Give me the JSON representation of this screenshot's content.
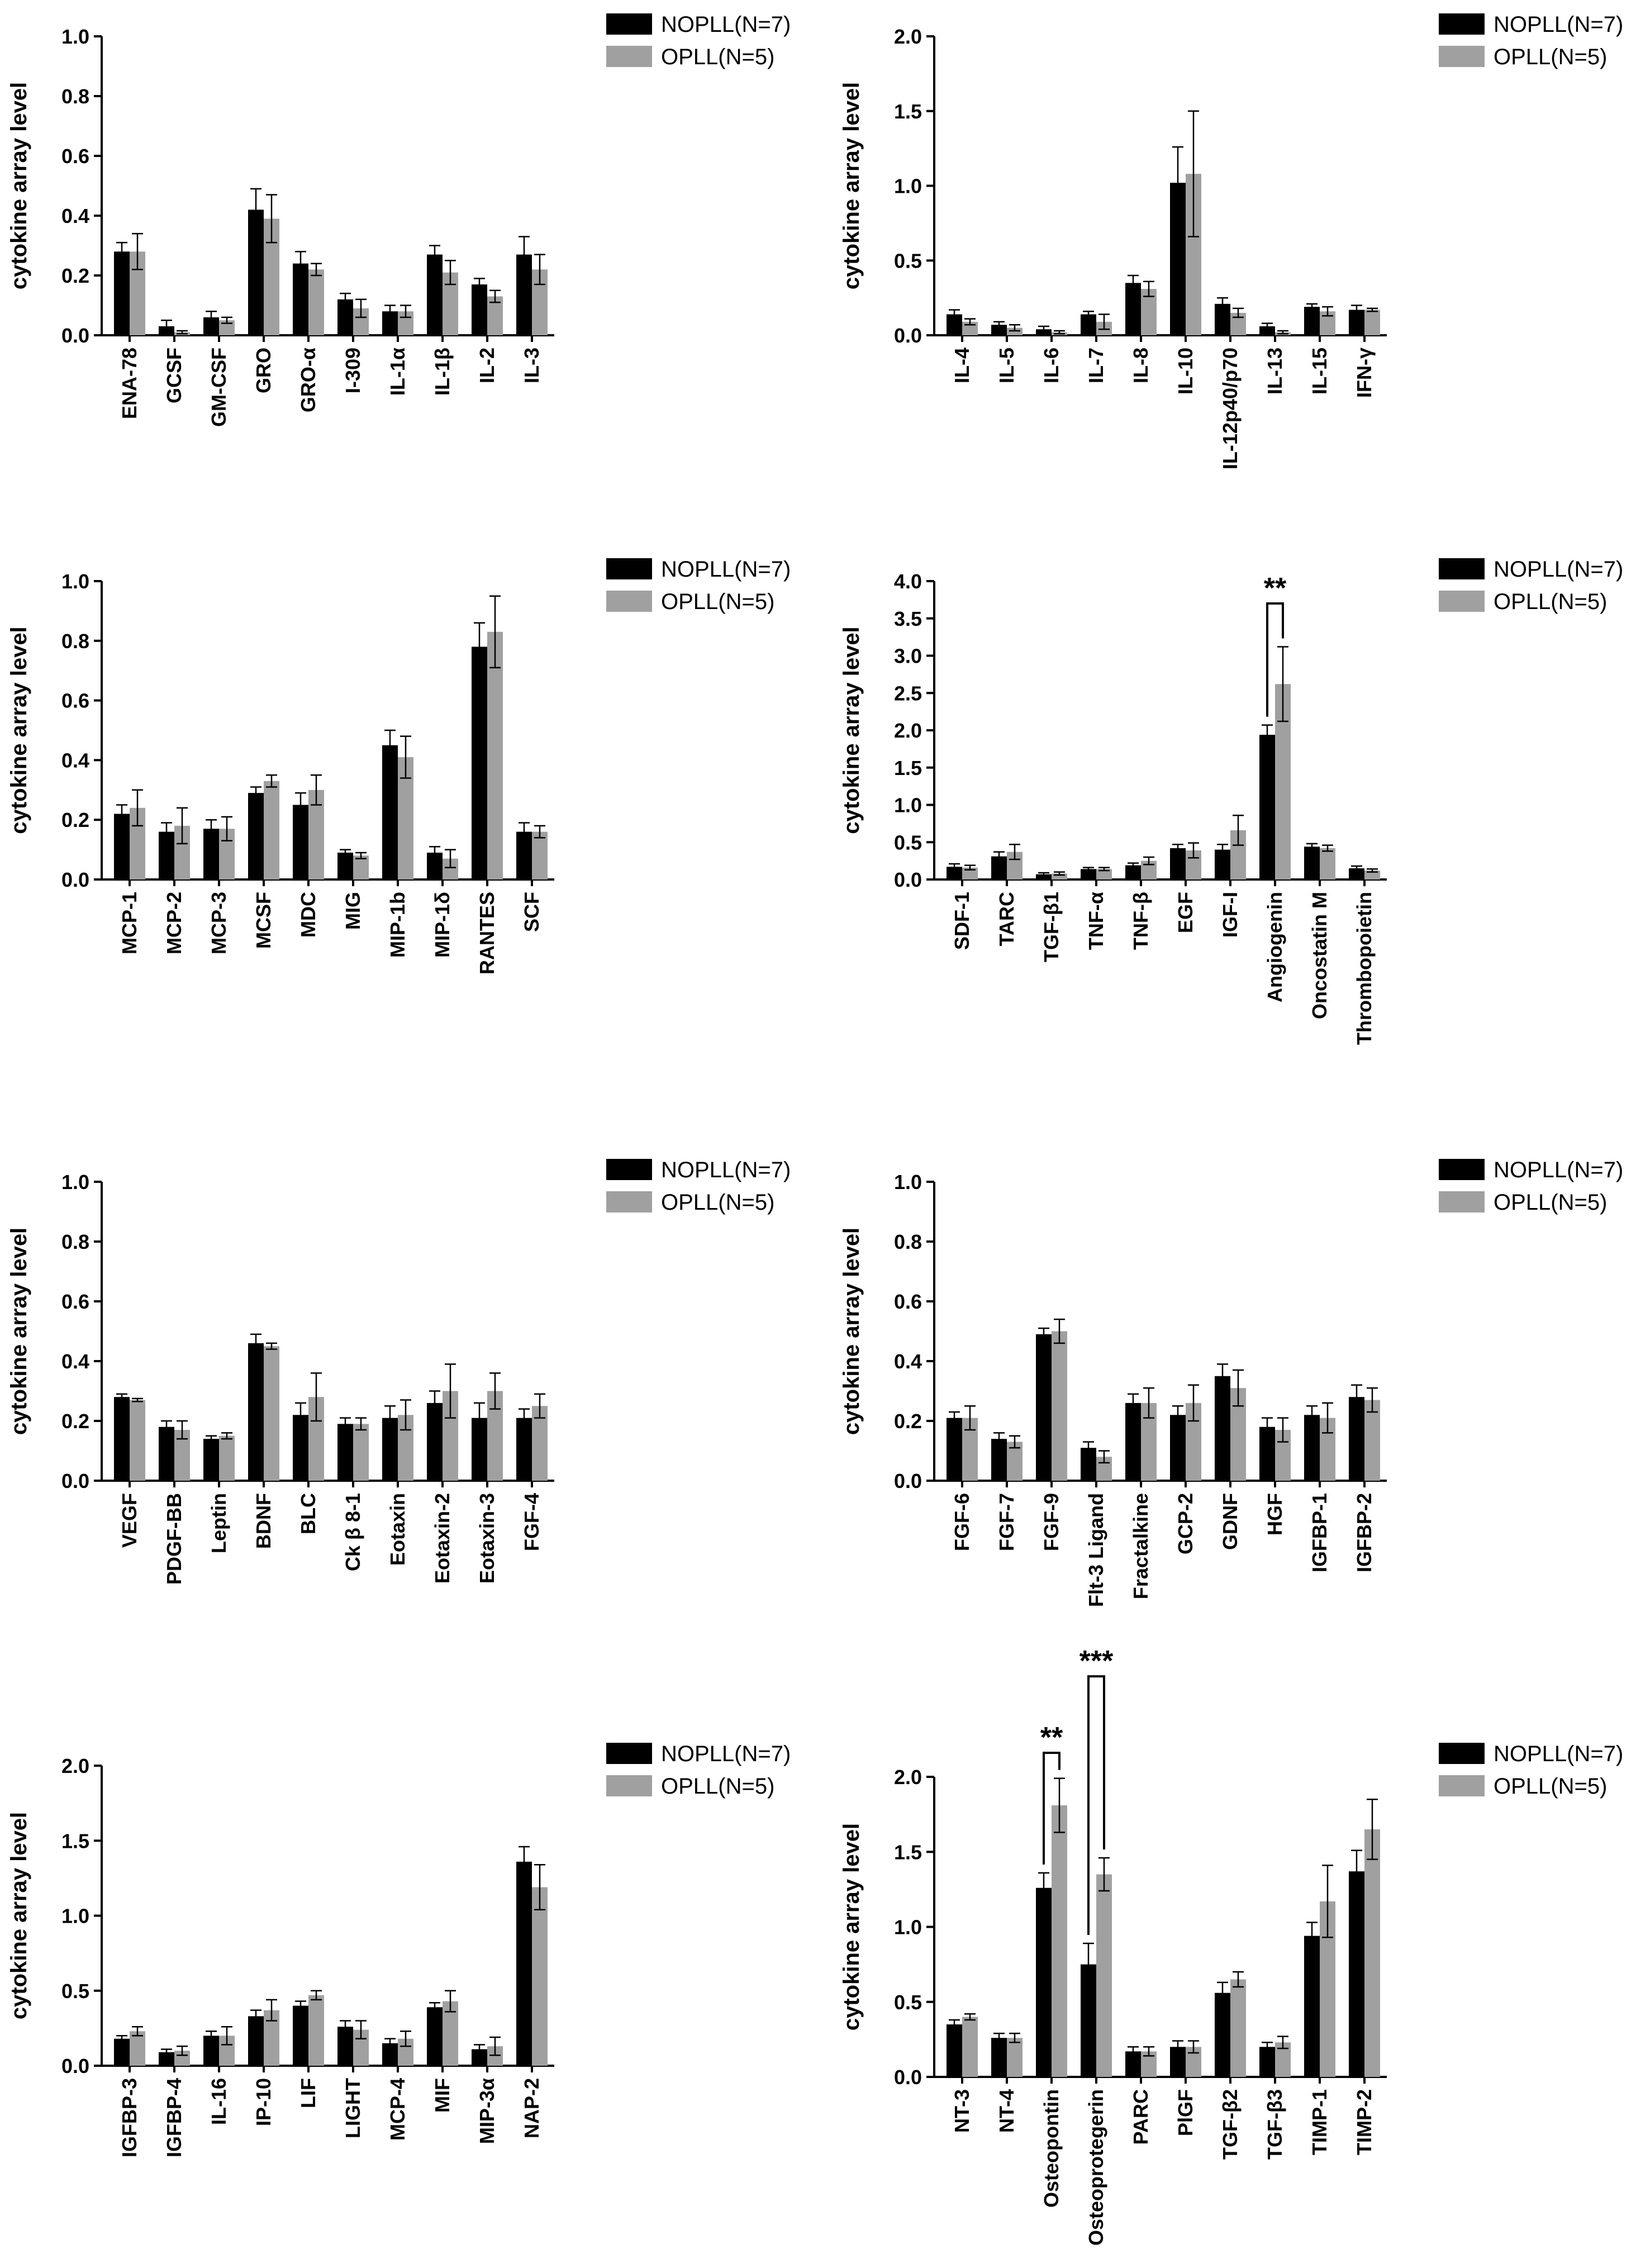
{
  "colors": {
    "nopll": "#000000",
    "opll": "#a0a0a0"
  },
  "chart_data": [
    {
      "type": "bar",
      "ylabel": "cytokine array level",
      "ylim": [
        0,
        1.0
      ],
      "yticks": [
        "0.0",
        "0.2",
        "0.4",
        "0.6",
        "0.8",
        "1.0"
      ],
      "categories": [
        "ENA-78",
        "GCSF",
        "GM-CSF",
        "GRO",
        "GRO-α",
        "I-309",
        "IL-1α",
        "IL-1β",
        "IL-2",
        "IL-3"
      ],
      "series": [
        {
          "name": "NOPLL(N=7)",
          "values": [
            0.28,
            0.03,
            0.06,
            0.42,
            0.24,
            0.12,
            0.08,
            0.27,
            0.17,
            0.27
          ],
          "errors": [
            0.03,
            0.02,
            0.02,
            0.07,
            0.04,
            0.02,
            0.02,
            0.03,
            0.02,
            0.06
          ]
        },
        {
          "name": "OPLL(N=5)",
          "values": [
            0.28,
            0.01,
            0.05,
            0.39,
            0.22,
            0.09,
            0.08,
            0.21,
            0.13,
            0.22
          ],
          "errors": [
            0.06,
            0.005,
            0.01,
            0.08,
            0.02,
            0.03,
            0.02,
            0.04,
            0.02,
            0.05
          ]
        }
      ],
      "annotations": []
    },
    {
      "type": "bar",
      "ylabel": "cytokine array level",
      "ylim": [
        0,
        2.0
      ],
      "yticks": [
        "0.0",
        "0.5",
        "1.0",
        "1.5",
        "2.0"
      ],
      "categories": [
        "IL-4",
        "IL-5",
        "IL-6",
        "IL-7",
        "IL-8",
        "IL-10",
        "IL-12p40/p70",
        "IL-13",
        "IL-15",
        "IFN-γ"
      ],
      "series": [
        {
          "name": "NOPLL(N=7)",
          "values": [
            0.14,
            0.07,
            0.04,
            0.14,
            0.35,
            1.02,
            0.21,
            0.06,
            0.19,
            0.17
          ],
          "errors": [
            0.03,
            0.02,
            0.02,
            0.02,
            0.05,
            0.24,
            0.04,
            0.02,
            0.02,
            0.03
          ]
        },
        {
          "name": "OPLL(N=5)",
          "values": [
            0.09,
            0.05,
            0.02,
            0.09,
            0.31,
            1.08,
            0.15,
            0.02,
            0.16,
            0.17
          ],
          "errors": [
            0.02,
            0.02,
            0.01,
            0.05,
            0.05,
            0.42,
            0.03,
            0.01,
            0.03,
            0.01
          ]
        }
      ],
      "annotations": []
    },
    {
      "type": "bar",
      "ylabel": "cytokine array level",
      "ylim": [
        0,
        1.0
      ],
      "yticks": [
        "0.0",
        "0.2",
        "0.4",
        "0.6",
        "0.8",
        "1.0"
      ],
      "categories": [
        "MCP-1",
        "MCP-2",
        "MCP-3",
        "MCSF",
        "MDC",
        "MIG",
        "MIP-1b",
        "MIP-1δ",
        "RANTES",
        "SCF"
      ],
      "series": [
        {
          "name": "NOPLL(N=7)",
          "values": [
            0.22,
            0.16,
            0.17,
            0.29,
            0.25,
            0.09,
            0.45,
            0.09,
            0.78,
            0.16
          ],
          "errors": [
            0.03,
            0.03,
            0.03,
            0.02,
            0.04,
            0.01,
            0.05,
            0.02,
            0.08,
            0.03
          ]
        },
        {
          "name": "OPLL(N=5)",
          "values": [
            0.24,
            0.18,
            0.17,
            0.33,
            0.3,
            0.08,
            0.41,
            0.07,
            0.83,
            0.16
          ],
          "errors": [
            0.06,
            0.06,
            0.04,
            0.02,
            0.05,
            0.01,
            0.07,
            0.03,
            0.12,
            0.02
          ]
        }
      ],
      "annotations": []
    },
    {
      "type": "bar",
      "ylabel": "cytokine array level",
      "ylim": [
        0,
        4.0
      ],
      "yticks": [
        "0.0",
        "0.5",
        "1.0",
        "1.5",
        "2.0",
        "2.5",
        "3.0",
        "3.5",
        "4.0"
      ],
      "categories": [
        "SDF-1",
        "TARC",
        "TGF-β1",
        "TNF-α",
        "TNF-β",
        "EGF",
        "IGF-I",
        "Angiogenin",
        "Oncostatin M",
        "Thrombopoietin"
      ],
      "series": [
        {
          "name": "NOPLL(N=7)",
          "values": [
            0.17,
            0.31,
            0.07,
            0.14,
            0.19,
            0.42,
            0.4,
            1.94,
            0.44,
            0.15
          ],
          "errors": [
            0.04,
            0.06,
            0.02,
            0.02,
            0.03,
            0.05,
            0.07,
            0.13,
            0.04,
            0.03
          ]
        },
        {
          "name": "OPLL(N=5)",
          "values": [
            0.16,
            0.37,
            0.08,
            0.14,
            0.25,
            0.39,
            0.66,
            2.62,
            0.42,
            0.12
          ],
          "errors": [
            0.03,
            0.1,
            0.02,
            0.02,
            0.05,
            0.1,
            0.2,
            0.5,
            0.04,
            0.02
          ]
        }
      ],
      "annotations": [
        {
          "label": "**",
          "from_category": "Angiogenin",
          "to_category": "Angiogenin",
          "y": 3.7
        }
      ]
    },
    {
      "type": "bar",
      "ylabel": "cytokine array level",
      "ylim": [
        0,
        1.0
      ],
      "yticks": [
        "0.0",
        "0.2",
        "0.4",
        "0.6",
        "0.8",
        "1.0"
      ],
      "categories": [
        "VEGF",
        "PDGF-BB",
        "Leptin",
        "BDNF",
        "BLC",
        "Ck β 8-1",
        "Eotaxin",
        "Eotaxin-2",
        "Eotaxin-3",
        "FGF-4"
      ],
      "series": [
        {
          "name": "NOPLL(N=7)",
          "values": [
            0.28,
            0.18,
            0.14,
            0.46,
            0.22,
            0.19,
            0.21,
            0.26,
            0.21,
            0.21
          ],
          "errors": [
            0.01,
            0.02,
            0.01,
            0.03,
            0.04,
            0.02,
            0.04,
            0.04,
            0.05,
            0.03
          ]
        },
        {
          "name": "OPLL(N=5)",
          "values": [
            0.27,
            0.17,
            0.15,
            0.45,
            0.28,
            0.19,
            0.22,
            0.3,
            0.3,
            0.25
          ],
          "errors": [
            0.005,
            0.03,
            0.01,
            0.01,
            0.08,
            0.02,
            0.05,
            0.09,
            0.06,
            0.04
          ]
        }
      ],
      "annotations": []
    },
    {
      "type": "bar",
      "ylabel": "cytokine array level",
      "ylim": [
        0,
        1.0
      ],
      "yticks": [
        "0.0",
        "0.2",
        "0.4",
        "0.6",
        "0.8",
        "1.0"
      ],
      "categories": [
        "FGF-6",
        "FGF-7",
        "FGF-9",
        "Flt-3 Ligand",
        "Fractalkine",
        "GCP-2",
        "GDNF",
        "HGF",
        "IGFBP-1",
        "IGFBP-2"
      ],
      "series": [
        {
          "name": "NOPLL(N=7)",
          "values": [
            0.21,
            0.14,
            0.49,
            0.11,
            0.26,
            0.22,
            0.35,
            0.18,
            0.22,
            0.28
          ],
          "errors": [
            0.02,
            0.02,
            0.02,
            0.02,
            0.03,
            0.03,
            0.04,
            0.03,
            0.03,
            0.04
          ]
        },
        {
          "name": "OPLL(N=5)",
          "values": [
            0.21,
            0.13,
            0.5,
            0.08,
            0.26,
            0.26,
            0.31,
            0.17,
            0.21,
            0.27
          ],
          "errors": [
            0.04,
            0.02,
            0.04,
            0.02,
            0.05,
            0.06,
            0.06,
            0.04,
            0.05,
            0.04
          ]
        }
      ],
      "annotations": []
    },
    {
      "type": "bar",
      "ylabel": "cytokine array level",
      "ylim": [
        0,
        2.0
      ],
      "yticks": [
        "0.0",
        "0.5",
        "1.0",
        "1.5",
        "2.0"
      ],
      "categories": [
        "IGFBP-3",
        "IGFBP-4",
        "IL-16",
        "IP-10",
        "LIF",
        "LIGHT",
        "MCP-4",
        "MIF",
        "MIP-3α",
        "NAP-2"
      ],
      "series": [
        {
          "name": "NOPLL(N=7)",
          "values": [
            0.18,
            0.09,
            0.2,
            0.33,
            0.4,
            0.26,
            0.15,
            0.39,
            0.11,
            1.36
          ],
          "errors": [
            0.02,
            0.02,
            0.03,
            0.04,
            0.03,
            0.04,
            0.03,
            0.03,
            0.03,
            0.1
          ]
        },
        {
          "name": "OPLL(N=5)",
          "values": [
            0.23,
            0.1,
            0.2,
            0.37,
            0.47,
            0.24,
            0.18,
            0.43,
            0.13,
            1.19
          ],
          "errors": [
            0.03,
            0.03,
            0.06,
            0.07,
            0.03,
            0.06,
            0.05,
            0.07,
            0.06,
            0.15
          ]
        }
      ],
      "annotations": []
    },
    {
      "type": "bar",
      "ylabel": "cytokine array level",
      "ylim": [
        0,
        2.0
      ],
      "yticks": [
        "0.0",
        "0.5",
        "1.0",
        "1.5",
        "2.0"
      ],
      "categories": [
        "NT-3",
        "NT-4",
        "Osteopontin",
        "Osteoprotegerin",
        "PARC",
        "PlGF",
        "TGF-β2",
        "TGF-β3",
        "TIMP-1",
        "TIMP-2"
      ],
      "series": [
        {
          "name": "NOPLL(N=7)",
          "values": [
            0.35,
            0.26,
            1.26,
            0.75,
            0.17,
            0.2,
            0.56,
            0.2,
            0.94,
            1.37
          ],
          "errors": [
            0.03,
            0.03,
            0.1,
            0.14,
            0.03,
            0.04,
            0.07,
            0.03,
            0.09,
            0.14
          ]
        },
        {
          "name": "OPLL(N=5)",
          "values": [
            0.4,
            0.26,
            1.81,
            1.35,
            0.17,
            0.2,
            0.65,
            0.23,
            1.17,
            1.65
          ],
          "errors": [
            0.02,
            0.03,
            0.18,
            0.11,
            0.03,
            0.04,
            0.05,
            0.04,
            0.24,
            0.2
          ]
        }
      ],
      "annotations": [
        {
          "label": "**",
          "from_category": "Osteopontin",
          "to_category": "Osteopontin",
          "y": 2.16
        },
        {
          "label": "***",
          "from_category": "Osteoprotegerin",
          "to_category": "Osteoprotegerin",
          "y": 2.67
        }
      ]
    }
  ]
}
